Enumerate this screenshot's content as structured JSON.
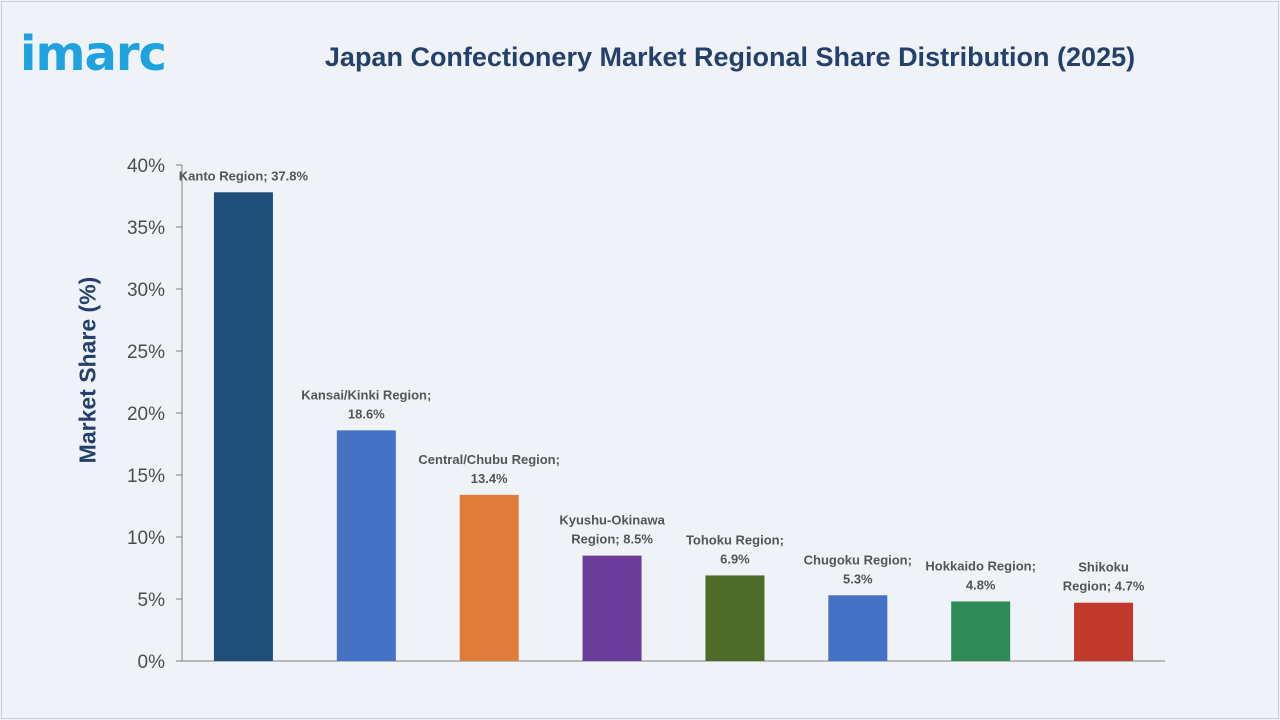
{
  "brand": {
    "logo_text": "imarc",
    "color": "#1fa3e0"
  },
  "chart_data": {
    "type": "bar",
    "title": "Japan Confectionery Market Regional Share Distribution (2025)",
    "xlabel": "",
    "ylabel": "Market Share (%)",
    "ylim": [
      0,
      40
    ],
    "yticks": [
      "0%",
      "5%",
      "10%",
      "15%",
      "20%",
      "25%",
      "30%",
      "35%",
      "40%"
    ],
    "grid": false,
    "categories": [
      "Kanto Region",
      "Kansai/Kinki Region",
      "Central/Chubu Region",
      "Kyushu-Okinawa Region",
      "Tohoku Region",
      "Chugoku Region",
      "Hokkaido Region",
      "Shikoku Region"
    ],
    "values": [
      37.8,
      18.6,
      13.4,
      8.5,
      6.9,
      5.3,
      4.8,
      4.7
    ],
    "data_labels": [
      [
        "Kanto Region; 37.8%"
      ],
      [
        "Kansai/Kinki Region;",
        "18.6%"
      ],
      [
        "Central/Chubu Region;",
        "13.4%"
      ],
      [
        "Kyushu-Okinawa",
        "Region; 8.5%"
      ],
      [
        "Tohoku Region;",
        "6.9%"
      ],
      [
        "Chugoku Region;",
        "5.3%"
      ],
      [
        "Hokkaido Region;",
        "4.8%"
      ],
      [
        "Shikoku",
        "Region; 4.7%"
      ]
    ],
    "colors": [
      "#1f4e79",
      "#4472c4",
      "#e07b39",
      "#6a3d9a",
      "#4f6b2a",
      "#4472c4",
      "#2e8b57",
      "#c0392b"
    ]
  }
}
